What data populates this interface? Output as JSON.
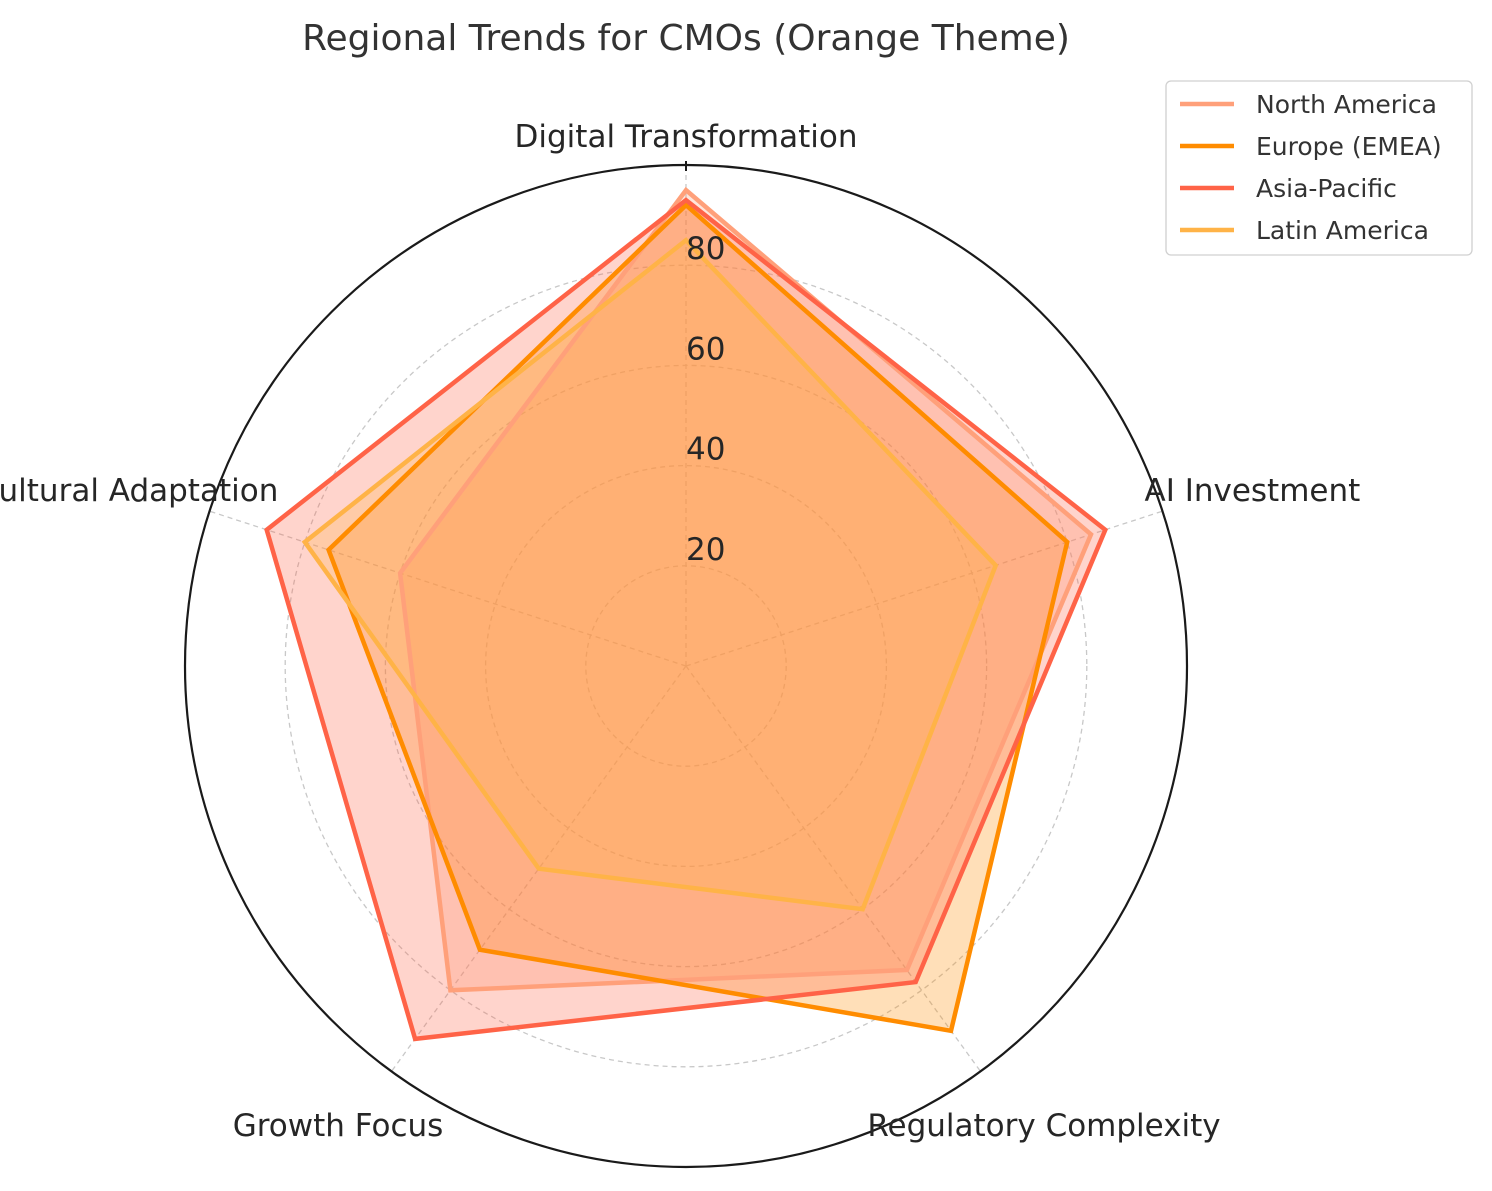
{
  "chart_data": {
    "type": "radar",
    "title": "Regional Trends for CMOs (Orange Theme)",
    "categories": [
      "Digital Transformation",
      "AI Investment",
      "Regulatory Complexity",
      "Growth Focus",
      "Cultural Adaptation"
    ],
    "radial_ticks": [
      "20",
      "40",
      "60",
      "80"
    ],
    "radial_tick_values": [
      20,
      40,
      60,
      80
    ],
    "rlim": [
      0,
      100
    ],
    "grid": true,
    "legend_position": "top-right",
    "series": [
      {
        "name": "North America",
        "values": [
          95,
          85,
          75,
          80,
          60
        ],
        "color": "#FFA07A"
      },
      {
        "name": "Europe (EMEA)",
        "values": [
          92,
          80,
          90,
          70,
          75
        ],
        "color": "#FF8C00"
      },
      {
        "name": "Asia-Pacific",
        "values": [
          93,
          88,
          78,
          92,
          88
        ],
        "color": "#FF6347"
      },
      {
        "name": "Latin America",
        "values": [
          85,
          65,
          60,
          50,
          80
        ],
        "color": "#FFB347"
      }
    ]
  }
}
